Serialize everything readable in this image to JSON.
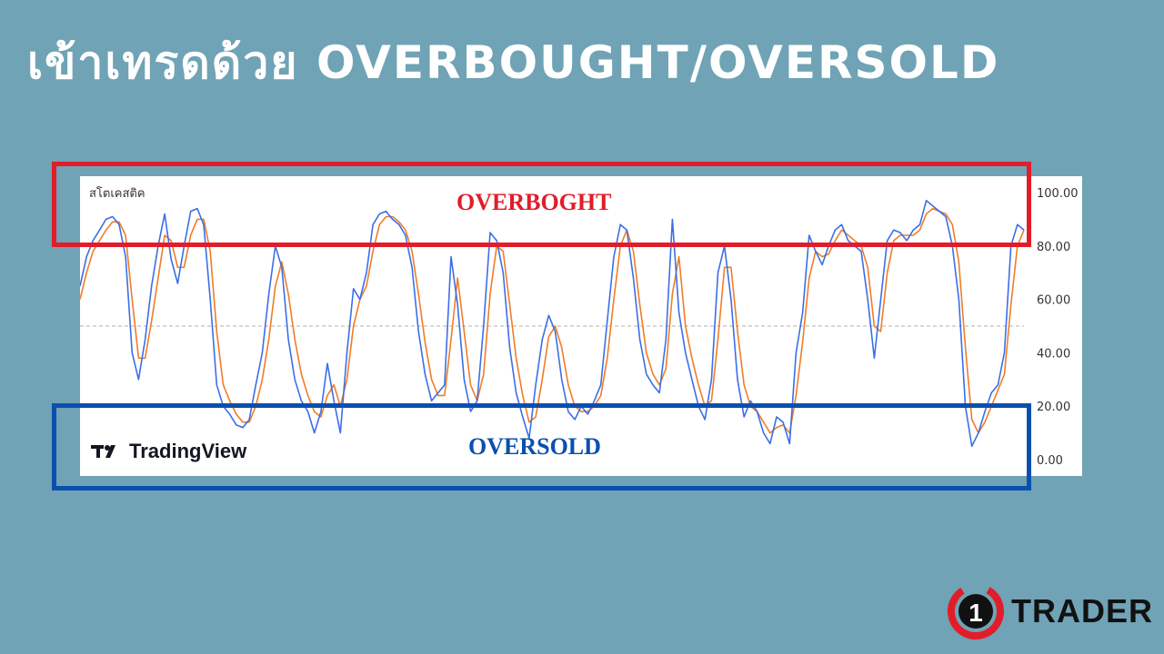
{
  "page": {
    "title": "เข้าเทรดด้วย OVERBOUGHT/OVERSOLD"
  },
  "chart": {
    "indicator_name": "สโตเคสติค",
    "watermark": "TradingView",
    "overbought_label": "OVERBOGHT",
    "oversold_label": "OVERSOLD",
    "colors": {
      "k_line": "#3b6fe8",
      "d_line": "#f07d28",
      "overbought_box": "#e11d2a",
      "oversold_box": "#0b4fae",
      "midline": "#b0b0b0"
    }
  },
  "brand": {
    "number": "1",
    "name": "TRADER"
  },
  "chart_data": {
    "type": "line",
    "title": "",
    "xlabel": "",
    "ylabel": "",
    "ylim": [
      0,
      100
    ],
    "y_ticks": [
      "100.00",
      "80.00",
      "60.00",
      "40.00",
      "20.00",
      "0.00"
    ],
    "y_tick_values": [
      100,
      80,
      60,
      40,
      20,
      0
    ],
    "reference_line": 50,
    "grid": false,
    "series": [
      {
        "key": "k",
        "values": [
          65,
          76,
          82,
          86,
          90,
          91,
          88,
          76,
          40,
          30,
          45,
          65,
          80,
          92,
          75,
          66,
          80,
          93,
          94,
          88,
          60,
          28,
          20,
          17,
          13,
          12,
          15,
          28,
          40,
          62,
          80,
          72,
          45,
          30,
          22,
          18,
          10,
          18,
          36,
          22,
          10,
          40,
          64,
          60,
          70,
          88,
          92,
          93,
          90,
          88,
          84,
          72,
          48,
          32,
          22,
          25,
          28,
          76,
          58,
          30,
          18,
          22,
          50,
          85,
          82,
          70,
          42,
          25,
          16,
          8,
          28,
          45,
          54,
          48,
          30,
          18,
          15,
          20,
          17,
          22,
          28,
          52,
          76,
          88,
          86,
          68,
          45,
          32,
          28,
          25,
          45,
          90,
          55,
          40,
          30,
          20,
          15,
          30,
          70,
          80,
          60,
          30,
          16,
          22,
          18,
          10,
          6,
          16,
          14,
          6,
          40,
          55,
          84,
          78,
          73,
          80,
          86,
          88,
          82,
          80,
          78,
          60,
          38,
          60,
          82,
          86,
          85,
          82,
          86,
          88,
          97,
          95,
          93,
          91,
          80,
          60,
          20,
          5,
          10,
          18,
          25,
          28,
          40,
          80,
          88,
          86
        ]
      },
      {
        "key": "d",
        "values": [
          60,
          70,
          78,
          82,
          86,
          89,
          89,
          84,
          60,
          38,
          38,
          52,
          68,
          84,
          82,
          72,
          72,
          84,
          90,
          90,
          78,
          48,
          28,
          22,
          17,
          14,
          14,
          20,
          30,
          45,
          65,
          74,
          62,
          45,
          32,
          24,
          18,
          16,
          24,
          28,
          20,
          30,
          50,
          60,
          65,
          78,
          88,
          91,
          91,
          89,
          86,
          78,
          62,
          44,
          30,
          24,
          24,
          45,
          68,
          48,
          28,
          22,
          32,
          62,
          80,
          78,
          58,
          38,
          24,
          14,
          16,
          30,
          46,
          50,
          42,
          28,
          20,
          18,
          18,
          20,
          24,
          38,
          60,
          80,
          86,
          78,
          58,
          40,
          32,
          28,
          34,
          62,
          76,
          50,
          38,
          28,
          20,
          22,
          45,
          72,
          72,
          48,
          28,
          20,
          18,
          14,
          10,
          12,
          13,
          10,
          24,
          44,
          68,
          78,
          76,
          77,
          82,
          86,
          84,
          82,
          80,
          72,
          50,
          48,
          70,
          82,
          84,
          84,
          84,
          86,
          92,
          94,
          93,
          92,
          88,
          74,
          42,
          15,
          10,
          14,
          20,
          26,
          32,
          58,
          80,
          86
        ]
      }
    ]
  }
}
